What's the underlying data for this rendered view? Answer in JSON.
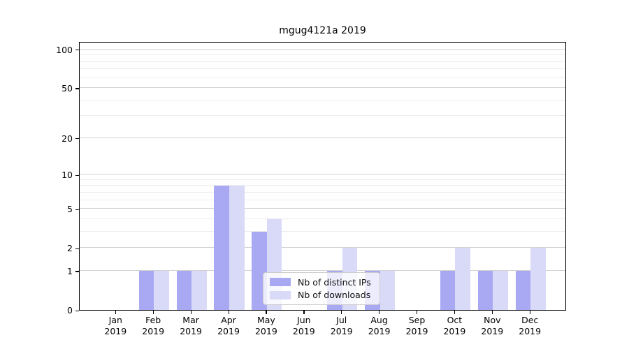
{
  "chart_data": {
    "type": "bar",
    "title": "mgug4121a 2019",
    "scale": "log1p",
    "categories": [
      "Jan",
      "Feb",
      "Mar",
      "Apr",
      "May",
      "Jun",
      "Jul",
      "Aug",
      "Sep",
      "Oct",
      "Nov",
      "Dec"
    ],
    "year_label": "2019",
    "series": [
      {
        "name": "Nb of distinct IPs",
        "color": "#a8a8f3",
        "values": [
          0,
          1,
          1,
          8,
          3,
          0,
          1,
          1,
          0,
          1,
          1,
          1
        ]
      },
      {
        "name": "Nb of downloads",
        "color": "#d9d9f8",
        "values": [
          0,
          1,
          1,
          8,
          4,
          0,
          2,
          1,
          0,
          2,
          1,
          2
        ]
      }
    ],
    "y_ticks": [
      0,
      1,
      2,
      5,
      10,
      20,
      50,
      100
    ],
    "y_minor_gridlines": [
      3,
      4,
      6,
      7,
      8,
      9,
      30,
      40,
      60,
      70,
      80,
      90
    ],
    "ylim": [
      0,
      114
    ],
    "grid": "on",
    "legend_position": "bottom-center",
    "colors": {
      "major_grid": "#d2d2d2",
      "minor_grid": "#ececec",
      "axis": "#000000",
      "legend_border": "#cccccc"
    }
  }
}
